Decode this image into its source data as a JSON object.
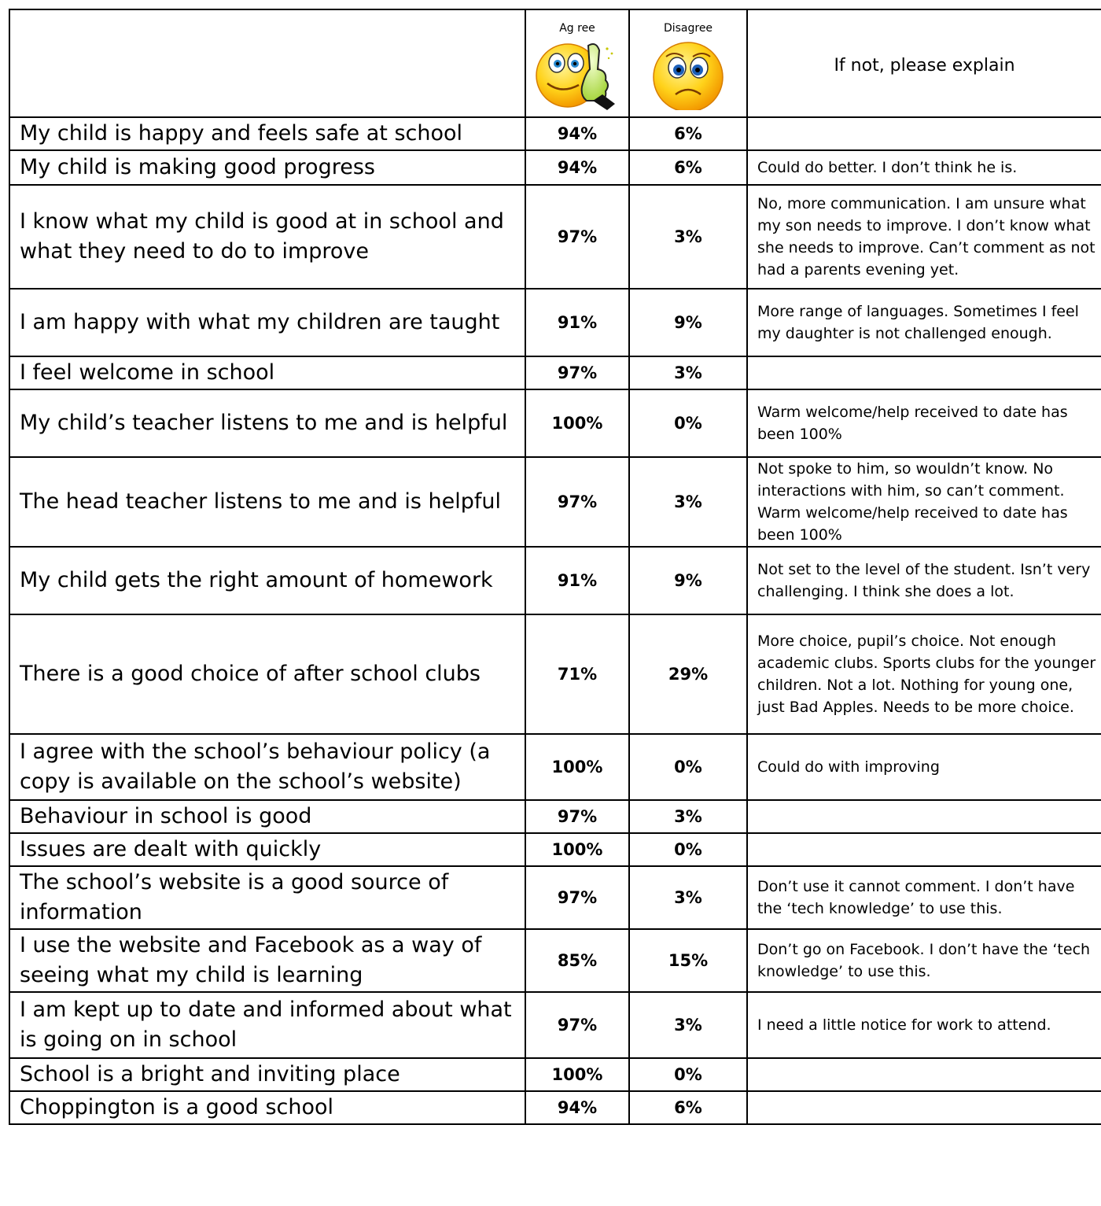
{
  "header": {
    "agree": "Ag ree",
    "disagree": "Disagree",
    "explain": "If not, please explain",
    "agree_icon": "thumbs-up-smiley-icon",
    "disagree_icon": "sad-face-icon"
  },
  "rows": [
    {
      "question": "My child is happy and feels safe at school",
      "agree": "94%",
      "disagree": "6%",
      "comment": ""
    },
    {
      "question": "My child is making good progress",
      "agree": "94%",
      "disagree": "6%",
      "comment": "Could do better. I don’t think he is."
    },
    {
      "question": "I know what my child is good at in school and what they need to do to improve",
      "agree": "97%",
      "disagree": "3%",
      "comment": "No, more communication.  I am unsure what my son needs to improve. I don’t know what she needs to improve.  Can’t comment as not had a parents evening yet."
    },
    {
      "question": "I am happy with what my children are taught",
      "agree": "91%",
      "disagree": "9%",
      "comment": "More range of languages.  Sometimes I feel my daughter is not challenged enough."
    },
    {
      "question": "I feel welcome in school",
      "agree": "97%",
      "disagree": "3%",
      "comment": ""
    },
    {
      "question": "My child’s teacher listens to me and is helpful",
      "agree": "100%",
      "disagree": "0%",
      "comment": "Warm welcome/help received to date has been 100%"
    },
    {
      "question": "The head teacher listens to me and is helpful",
      "agree": "97%",
      "disagree": "3%",
      "comment": "Not spoke to him, so wouldn’t know. No interactions with him, so can’t comment.  Warm welcome/help received to date has been 100%"
    },
    {
      "question": "My child gets the right amount of homework",
      "agree": "91%",
      "disagree": "9%",
      "comment": "Not set to the level of the student. Isn’t very challenging.  I think she does a lot."
    },
    {
      "question": "There is a good choice of after school clubs",
      "agree": "71%",
      "disagree": "29%",
      "comment": "More choice, pupil’s choice.  Not enough academic clubs.  Sports clubs for the younger children.  Not a lot. Nothing for young one, just Bad Apples.  Needs to be more choice."
    },
    {
      "question": "I agree with the school’s behaviour policy (a copy is available on the school’s website)",
      "agree": "100%",
      "disagree": "0%",
      "comment": "Could do with improving"
    },
    {
      "question": "Behaviour in school is good",
      "agree": "97%",
      "disagree": "3%",
      "comment": ""
    },
    {
      "question": "Issues are dealt with quickly",
      "agree": "100%",
      "disagree": "0%",
      "comment": ""
    },
    {
      "question": "The school’s website is a good source of information",
      "agree": "97%",
      "disagree": "3%",
      "comment": "Don’t use it cannot comment.  I don’t have the ‘tech knowledge’ to use this."
    },
    {
      "question": "I use the website and Facebook as a way of seeing what my child is learning",
      "agree": "85%",
      "disagree": "15%",
      "comment": "Don’t go on Facebook.  I don’t have the ‘tech knowledge’ to use this."
    },
    {
      "question": "I am kept up to date and informed about what is going on in school",
      "agree": "97%",
      "disagree": "3%",
      "comment": "I need a little notice for work to attend."
    },
    {
      "question": "School is a bright and inviting place",
      "agree": "100%",
      "disagree": "0%",
      "comment": ""
    },
    {
      "question": "Choppington is a good school",
      "agree": "94%",
      "disagree": "6%",
      "comment": ""
    }
  ]
}
